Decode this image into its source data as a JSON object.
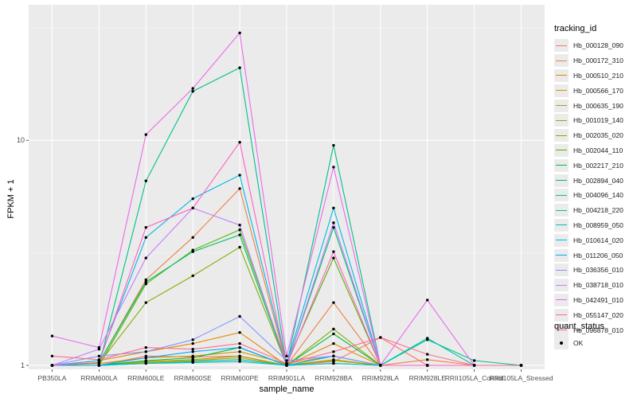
{
  "chart_data": {
    "type": "line",
    "ylabel": "FPKM + 1",
    "xlabel": "sample_name",
    "y_scale": "log10",
    "ylim": [
      0.96,
      40
    ],
    "y_ticks": [
      1,
      10
    ],
    "y_tick_labels": [
      "1",
      "10"
    ],
    "categories": [
      "PB350LA",
      "RRIM600LA",
      "RRIM600LE",
      "RRIM600SE",
      "RRIM600PE",
      "RRIM901LA",
      "RRIM928BA",
      "RRIM928LA",
      "RRIM928LE",
      "RRII105LA_Control",
      "RRII105LA_Stressed"
    ],
    "legend_title": "tracking_id",
    "legend2_title": "quant_status",
    "legend2_label": "OK",
    "series": [
      {
        "name": "Hb_000128_090",
        "color": "#F8766D",
        "values": [
          1.0,
          1.0,
          1.1,
          1.09,
          1.1,
          1.0,
          1.04,
          1.33,
          1.0,
          1.0,
          1.0
        ]
      },
      {
        "name": "Hb_000172_310",
        "color": "#EE8043",
        "values": [
          1.0,
          1.03,
          2.4,
          3.7,
          6.1,
          1.0,
          1.9,
          1.0,
          1.06,
          1.0,
          1.0
        ]
      },
      {
        "name": "Hb_000510_210",
        "color": "#E18A00",
        "values": [
          1.0,
          1.05,
          1.15,
          1.25,
          1.4,
          1.0,
          1.25,
          1.0,
          1.0,
          1.0,
          1.0
        ]
      },
      {
        "name": "Hb_000566_170",
        "color": "#D09400",
        "values": [
          1.0,
          1.02,
          1.08,
          1.1,
          1.15,
          1.02,
          1.1,
          1.0,
          1.0,
          1.0,
          1.0
        ]
      },
      {
        "name": "Hb_000635_190",
        "color": "#BB9D00",
        "values": [
          1.0,
          1.0,
          1.03,
          1.05,
          1.08,
          1.0,
          1.06,
          1.0,
          1.0,
          1.0,
          1.0
        ]
      },
      {
        "name": "Hb_001019_140",
        "color": "#A3A500",
        "values": [
          1.0,
          1.0,
          1.04,
          1.06,
          1.1,
          1.0,
          1.05,
          1.0,
          1.0,
          1.0,
          1.0
        ]
      },
      {
        "name": "Hb_002035_020",
        "color": "#85AD00",
        "values": [
          1.0,
          1.02,
          1.9,
          2.5,
          3.35,
          1.0,
          1.45,
          1.0,
          1.0,
          1.0,
          1.0
        ]
      },
      {
        "name": "Hb_002044_110",
        "color": "#53B400",
        "values": [
          1.0,
          1.0,
          2.3,
          3.25,
          4.0,
          1.02,
          3.0,
          1.0,
          1.0,
          1.0,
          1.0
        ]
      },
      {
        "name": "Hb_002217_210",
        "color": "#00BA38",
        "values": [
          1.0,
          1.0,
          1.05,
          1.08,
          1.2,
          1.0,
          1.38,
          1.0,
          1.0,
          1.0,
          1.0
        ]
      },
      {
        "name": "Hb_002894_040",
        "color": "#00BE6C",
        "values": [
          1.0,
          1.03,
          2.35,
          3.2,
          3.8,
          1.0,
          4.1,
          1.0,
          1.0,
          1.0,
          1.0
        ]
      },
      {
        "name": "Hb_004096_140",
        "color": "#00C08B",
        "values": [
          1.0,
          1.0,
          6.6,
          16.5,
          21.0,
          1.0,
          9.5,
          1.0,
          1.3,
          1.05,
          1.0
        ]
      },
      {
        "name": "Hb_004218_220",
        "color": "#00C1A7",
        "values": [
          1.0,
          1.0,
          1.02,
          1.04,
          1.06,
          1.0,
          1.02,
          1.0,
          1.32,
          1.0,
          1.0
        ]
      },
      {
        "name": "Hb_008959_050",
        "color": "#00BFC4",
        "values": [
          1.0,
          1.0,
          1.02,
          1.03,
          1.04,
          1.0,
          1.02,
          1.0,
          1.0,
          1.0,
          1.0
        ]
      },
      {
        "name": "Hb_010614_020",
        "color": "#00B8E7",
        "values": [
          1.0,
          1.05,
          3.7,
          5.5,
          7.0,
          1.02,
          5.0,
          1.0,
          1.0,
          1.0,
          1.0
        ]
      },
      {
        "name": "Hb_011206_050",
        "color": "#00A9FF",
        "values": [
          1.0,
          1.0,
          1.08,
          1.15,
          1.2,
          1.0,
          1.1,
          1.0,
          1.0,
          1.0,
          1.0
        ]
      },
      {
        "name": "Hb_036356_010",
        "color": "#8494FF",
        "values": [
          1.0,
          1.1,
          1.15,
          1.3,
          1.65,
          1.05,
          1.1,
          1.0,
          1.0,
          1.0,
          1.0
        ]
      },
      {
        "name": "Hb_038718_010",
        "color": "#C77CFF",
        "values": [
          1.0,
          1.18,
          3.0,
          5.0,
          4.2,
          1.0,
          4.3,
          1.0,
          1.0,
          1.0,
          1.0
        ]
      },
      {
        "name": "Hb_042491_010",
        "color": "#ED68ED",
        "values": [
          1.35,
          1.2,
          10.6,
          17.0,
          30.0,
          1.1,
          7.6,
          1.0,
          1.95,
          1.0,
          1.0
        ]
      },
      {
        "name": "Hb_055147_020",
        "color": "#FF61C3",
        "values": [
          1.0,
          1.03,
          4.1,
          5.0,
          9.8,
          1.0,
          3.2,
          1.0,
          1.0,
          1.0,
          1.0
        ]
      },
      {
        "name": "Hb_096878_010",
        "color": "#FF6C91",
        "values": [
          1.1,
          1.06,
          1.2,
          1.18,
          1.25,
          1.02,
          1.15,
          1.33,
          1.12,
          1.0,
          1.0
        ]
      }
    ]
  }
}
